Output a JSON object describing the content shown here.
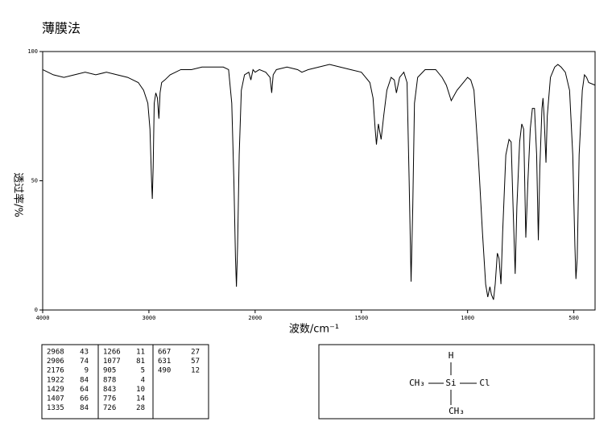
{
  "chart_data": {
    "type": "line",
    "title": "薄膜法",
    "x_label": "波数/cm⁻¹",
    "y_label": "透过率/%",
    "xlim": [
      4000,
      400
    ],
    "ylim": [
      0,
      100
    ],
    "xticks": [
      4000,
      3000,
      2000,
      1500,
      1000,
      500
    ],
    "yticks": [
      0,
      50,
      100
    ],
    "x_scale_change_at": 2000,
    "grid": false,
    "color": "#000000",
    "x": [
      4000,
      3900,
      3800,
      3700,
      3600,
      3500,
      3400,
      3300,
      3200,
      3100,
      3050,
      3010,
      2990,
      2975,
      2968,
      2960,
      2950,
      2935,
      2920,
      2906,
      2895,
      2880,
      2850,
      2800,
      2700,
      2600,
      2500,
      2400,
      2300,
      2250,
      2220,
      2200,
      2185,
      2176,
      2165,
      2150,
      2130,
      2100,
      2060,
      2040,
      2020,
      2000,
      1980,
      1950,
      1930,
      1922,
      1915,
      1900,
      1850,
      1800,
      1780,
      1750,
      1700,
      1650,
      1600,
      1550,
      1500,
      1480,
      1460,
      1445,
      1435,
      1429,
      1420,
      1407,
      1395,
      1380,
      1360,
      1345,
      1335,
      1320,
      1300,
      1285,
      1275,
      1266,
      1258,
      1250,
      1235,
      1200,
      1150,
      1120,
      1100,
      1077,
      1050,
      1020,
      1000,
      985,
      970,
      950,
      930,
      915,
      905,
      895,
      888,
      878,
      870,
      860,
      852,
      843,
      835,
      820,
      805,
      795,
      786,
      776,
      768,
      755,
      745,
      736,
      726,
      716,
      705,
      695,
      685,
      675,
      667,
      660,
      650,
      645,
      640,
      631,
      625,
      610,
      590,
      575,
      560,
      540,
      520,
      505,
      495,
      490,
      484,
      475,
      460,
      450,
      440,
      430,
      400
    ],
    "y": [
      93,
      91,
      90,
      91,
      92,
      91,
      92,
      91,
      90,
      88,
      85,
      80,
      70,
      50,
      43,
      55,
      80,
      84,
      82,
      74,
      84,
      88,
      89,
      91,
      93,
      93,
      94,
      94,
      94,
      93,
      80,
      50,
      20,
      9,
      25,
      60,
      85,
      91,
      92,
      89,
      93,
      92,
      93,
      92,
      90,
      84,
      91,
      93,
      94,
      93,
      92,
      93,
      94,
      95,
      94,
      93,
      92,
      90,
      88,
      82,
      70,
      64,
      72,
      66,
      75,
      85,
      90,
      89,
      84,
      90,
      92,
      88,
      50,
      11,
      40,
      80,
      90,
      93,
      93,
      90,
      87,
      81,
      85,
      88,
      90,
      89,
      85,
      60,
      30,
      10,
      5,
      9,
      6,
      4,
      10,
      22,
      20,
      10,
      30,
      60,
      66,
      65,
      40,
      14,
      40,
      65,
      72,
      70,
      28,
      50,
      70,
      78,
      78,
      60,
      27,
      55,
      78,
      82,
      75,
      57,
      75,
      90,
      94,
      95,
      94,
      92,
      85,
      60,
      25,
      12,
      20,
      60,
      85,
      91,
      90,
      88,
      87
    ]
  },
  "peak_table": {
    "rows": [
      [
        "2968",
        "43"
      ],
      [
        "2906",
        "74"
      ],
      [
        "2176",
        "9"
      ],
      [
        "1922",
        "84"
      ],
      [
        "1429",
        "64"
      ],
      [
        "1407",
        "66"
      ],
      [
        "1335",
        "84"
      ],
      [
        "1266",
        "11"
      ],
      [
        "1077",
        "81"
      ],
      [
        "905",
        "5"
      ],
      [
        "878",
        "4"
      ],
      [
        "843",
        "10"
      ],
      [
        "776",
        "14"
      ],
      [
        "726",
        "28"
      ],
      [
        "667",
        "27"
      ],
      [
        "631",
        "57"
      ],
      [
        "490",
        "12"
      ]
    ]
  },
  "structure": {
    "top": "H",
    "left": "CH₃",
    "center": "Si",
    "right": "Cl",
    "bottom": "CH₃"
  }
}
